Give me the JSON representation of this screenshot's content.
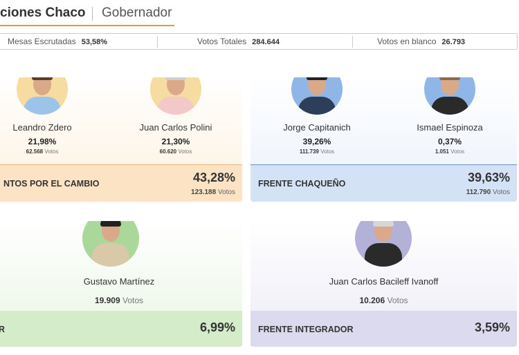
{
  "header": {
    "tab_active": "ciones Chaco",
    "tab_inactive": "Gobernador"
  },
  "stats": {
    "mesas_label": "Mesas Escrutadas",
    "mesas_value": "53,58%",
    "votos_label": "Votos Totales",
    "votos_value": "284.644",
    "blanco_label": "Votos en blanco",
    "blanco_value": "26.793"
  },
  "cards": {
    "juntos": {
      "party": "NTOS POR EL CAMBIO",
      "pct": "43,28%",
      "votes": "123.188",
      "votes_suffix": "Votos",
      "candidates": [
        {
          "name": "Leandro Zdero",
          "pct": "21,98%",
          "votes": "62.568",
          "votes_suffix": "Votos"
        },
        {
          "name": "Juan Carlos Polini",
          "pct": "21,30%",
          "votes": "60.620",
          "votes_suffix": "Votos"
        }
      ]
    },
    "chaque": {
      "party": "FRENTE CHAQUEÑO",
      "pct": "39,63%",
      "votes": "112.790",
      "votes_suffix": "Votos",
      "candidates": [
        {
          "name": "Jorge Capitanich",
          "pct": "39,26%",
          "votes": "111.739",
          "votes_suffix": "Votos"
        },
        {
          "name": "Ismael Espinoza",
          "pct": "0,37%",
          "votes": "1.051",
          "votes_suffix": "Votos"
        }
      ]
    },
    "green": {
      "party": "R",
      "pct": "6,99%",
      "candidate": {
        "name": "Gustavo Martínez",
        "votes": "19.909",
        "votes_suffix": "Votos"
      }
    },
    "integ": {
      "party": "FRENTE INTEGRADOR",
      "pct": "3,59%",
      "candidate": {
        "name": "Juan Carlos Bacileff Ivanoff",
        "votes": "10.206",
        "votes_suffix": "Votos"
      }
    }
  },
  "colors": {
    "tab_accent": "#e79a2b",
    "juntos_bar": "#fbe3c4",
    "chaque_bar": "#d4e2f6",
    "green_bar": "#d4ecca",
    "integ_bar": "#dcdaee"
  },
  "icons": [
    "candidate-photo-zdero",
    "candidate-photo-polini",
    "candidate-photo-capitanich",
    "candidate-photo-espinoza",
    "candidate-photo-martinez",
    "candidate-photo-bacileff"
  ]
}
